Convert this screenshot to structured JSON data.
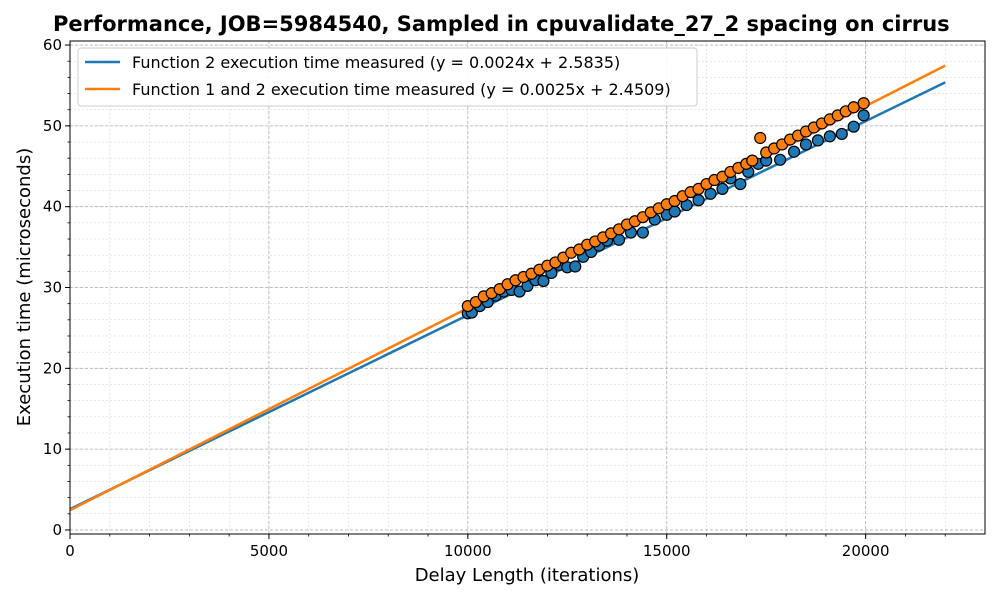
{
  "chart_data": {
    "type": "scatter",
    "title": "Performance, JOB=5984540, Sampled in cpuvalidate_27_2 spacing on cirrus",
    "xlabel": "Delay Length (iterations)",
    "ylabel": "Execution time (microseconds)",
    "xlim": [
      0,
      23000
    ],
    "ylim": [
      -0.5,
      60.5
    ],
    "xticks": [
      0,
      5000,
      10000,
      15000,
      20000
    ],
    "xtick_labels": [
      "0",
      "5000",
      "10000",
      "15000",
      "20000"
    ],
    "yticks": [
      0,
      10,
      20,
      30,
      40,
      50,
      60
    ],
    "ytick_labels": [
      "0",
      "10",
      "20",
      "30",
      "40",
      "50",
      "60"
    ],
    "grid": true,
    "legend_position": "top-left",
    "series": [
      {
        "name": "Function 2 execution time measured (y = 0.0024x + 2.5835)",
        "color": "#1f77b4",
        "fit": {
          "slope": 0.0024,
          "intercept": 2.5835,
          "x_range": [
            0,
            22000
          ]
        },
        "x": [
          10000,
          10100,
          10300,
          10500,
          10700,
          10900,
          11100,
          11300,
          11500,
          11700,
          11900,
          12100,
          12300,
          12500,
          12700,
          12900,
          13100,
          13300,
          13500,
          13800,
          14100,
          14400,
          14700,
          15000,
          15200,
          15500,
          15800,
          16100,
          16400,
          16600,
          16850,
          17050,
          17300,
          17500,
          17850,
          18200,
          18500,
          18800,
          19100,
          19400,
          19700,
          19950
        ],
        "y": [
          26.8,
          26.9,
          27.7,
          28.2,
          29.0,
          29.5,
          29.7,
          29.5,
          30.2,
          30.9,
          30.8,
          31.8,
          32.8,
          32.5,
          32.6,
          33.8,
          34.4,
          35.2,
          35.8,
          35.9,
          36.8,
          36.8,
          38.4,
          39.0,
          39.4,
          40.2,
          40.8,
          41.6,
          42.2,
          43.5,
          42.8,
          44.3,
          45.3,
          45.7,
          45.8,
          46.8,
          47.7,
          48.2,
          48.7,
          49.0,
          49.9,
          51.3
        ]
      },
      {
        "name": "Function 1 and 2 execution time measured (y = 0.0025x + 2.4509)",
        "color": "#ff7f0e",
        "fit": {
          "slope": 0.0025,
          "intercept": 2.4509,
          "x_range": [
            0,
            22000
          ]
        },
        "x": [
          10000,
          10200,
          10400,
          10600,
          10800,
          11000,
          11200,
          11400,
          11600,
          11800,
          12000,
          12200,
          12400,
          12600,
          12800,
          13000,
          13200,
          13400,
          13600,
          13800,
          14000,
          14200,
          14400,
          14600,
          14800,
          15000,
          15200,
          15400,
          15600,
          15800,
          16000,
          16200,
          16400,
          16600,
          16800,
          17000,
          17150,
          17350,
          17500,
          17700,
          17900,
          18100,
          18300,
          18500,
          18700,
          18900,
          19100,
          19300,
          19500,
          19700,
          19950
        ],
        "y": [
          27.7,
          28.2,
          28.9,
          29.3,
          29.8,
          30.4,
          30.9,
          31.3,
          31.7,
          32.2,
          32.7,
          33.1,
          33.7,
          34.3,
          34.7,
          35.3,
          35.7,
          36.2,
          36.7,
          37.2,
          37.8,
          38.2,
          38.7,
          39.3,
          39.8,
          40.3,
          40.7,
          41.3,
          41.8,
          42.2,
          42.8,
          43.3,
          43.7,
          44.3,
          44.8,
          45.3,
          45.7,
          48.5,
          46.7,
          47.2,
          47.7,
          48.3,
          48.8,
          49.3,
          49.8,
          50.3,
          50.8,
          51.3,
          51.8,
          52.3,
          52.8
        ]
      }
    ]
  }
}
